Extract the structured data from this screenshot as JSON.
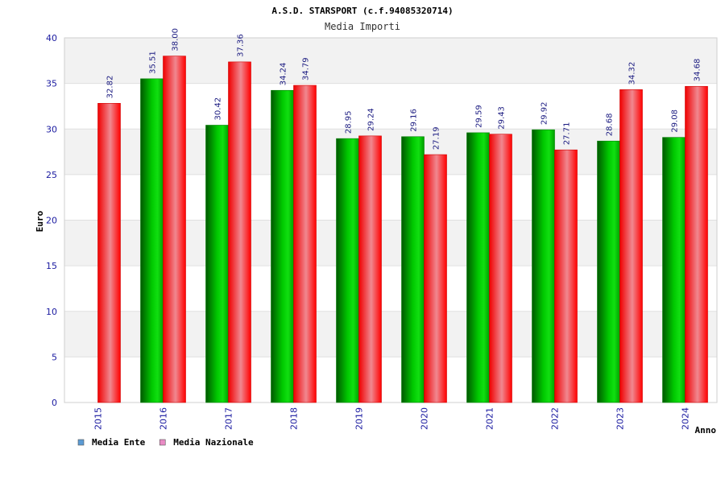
{
  "chart_data": {
    "type": "bar",
    "title": "A.S.D. STARSPORT (c.f.94085320714)",
    "subtitle": "Media Importi",
    "ylabel": "Euro",
    "xlabel": "Anno",
    "ylim": [
      0,
      40
    ],
    "yticks": [
      "0",
      "5",
      "10",
      "15",
      "20",
      "25",
      "30",
      "35",
      "40"
    ],
    "grid": true,
    "legend_position": "bottom-left",
    "categories": [
      "2015",
      "2016",
      "2017",
      "2018",
      "2019",
      "2020",
      "2021",
      "2022",
      "2023",
      "2024"
    ],
    "series": [
      {
        "name": "Media Ente",
        "legend_color": "#5b9bd5",
        "bar_color": "#00b000",
        "values": [
          null,
          35.51,
          30.42,
          34.24,
          28.95,
          29.16,
          29.59,
          29.92,
          28.68,
          29.08
        ],
        "labels": [
          "",
          "35.51",
          "30.42",
          "34.24",
          "28.95",
          "29.16",
          "29.59",
          "29.92",
          "28.68",
          "29.08"
        ]
      },
      {
        "name": "Media Nazionale",
        "legend_color": "#e98bc5",
        "bar_color": "#ff0000",
        "values": [
          32.82,
          38.0,
          37.36,
          34.79,
          29.24,
          27.19,
          29.43,
          27.71,
          34.32,
          34.68
        ],
        "labels": [
          "32.82",
          "38.00",
          "37.36",
          "34.79",
          "29.24",
          "27.19",
          "29.43",
          "27.71",
          "34.32",
          "34.68"
        ]
      }
    ]
  }
}
